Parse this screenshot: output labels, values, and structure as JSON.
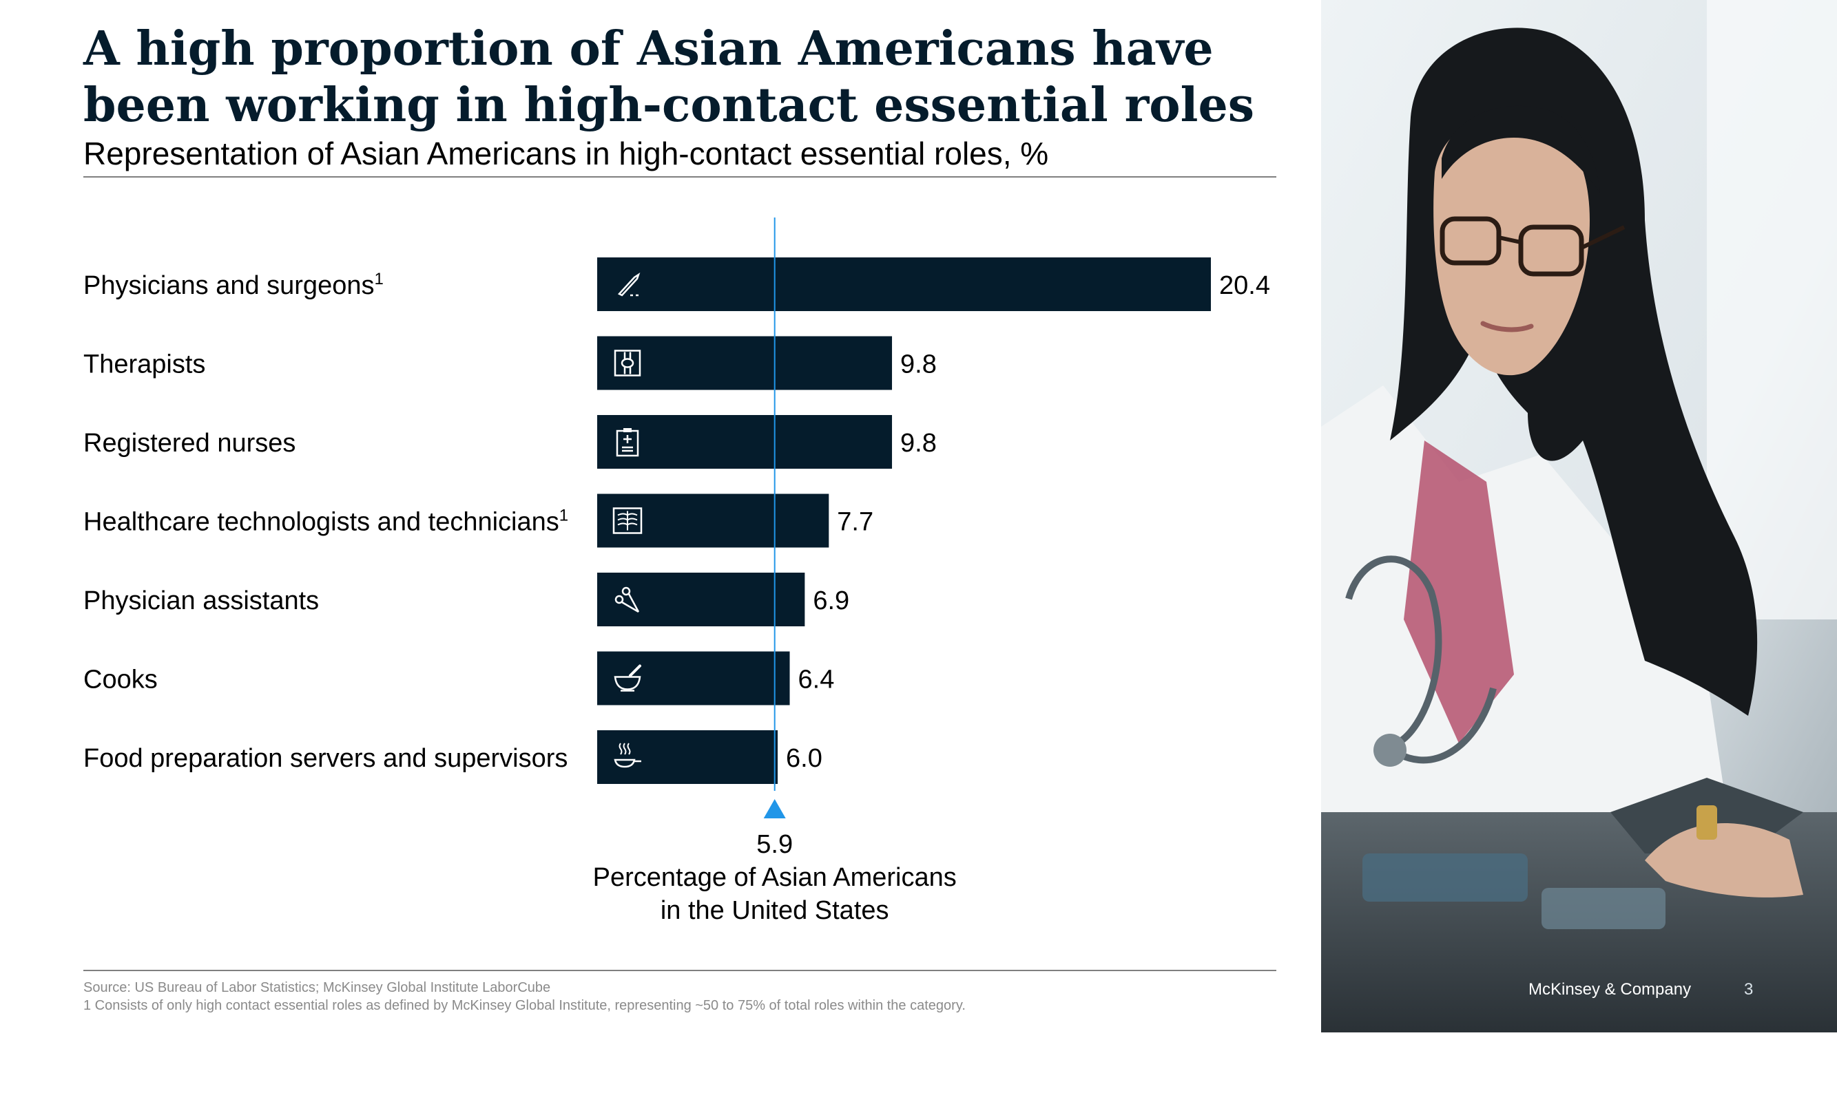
{
  "title": "A high proportion of Asian Americans have been working in high-contact essential roles",
  "subtitle": "Representation of Asian Americans in high-contact essential roles, %",
  "footer": {
    "source": "Source: US Bureau of Labor Statistics; McKinsey Global Institute LaborCube",
    "note": "1 Consists of only high contact essential roles as defined by McKinsey Global Institute, representing ~50 to 75% of total roles within the category.",
    "brand": "McKinsey & Company",
    "page": "3"
  },
  "colors": {
    "bar": "#051c2c",
    "reference": "#2196e8",
    "text": "#000000",
    "icon": "#ffffff"
  },
  "chart_data": {
    "type": "bar",
    "orientation": "horizontal",
    "categories": [
      "Physicians and surgeons",
      "Therapists",
      "Registered nurses",
      "Healthcare technologists and technicians",
      "Physician assistants",
      "Cooks",
      "Food preparation servers and supervisors"
    ],
    "footnote_marks": [
      "1",
      "",
      "",
      "1",
      "",
      "",
      ""
    ],
    "values": [
      20.4,
      9.8,
      9.8,
      7.7,
      6.9,
      6.4,
      6.0
    ],
    "value_labels": [
      "20.4",
      "9.8",
      "9.8",
      "7.7",
      "6.9",
      "6.4",
      "6.0"
    ],
    "icons": [
      "scalpel-icon",
      "joint-bone-icon",
      "medical-clipboard-icon",
      "xray-ribcage-icon",
      "surgical-clamp-icon",
      "mortar-pestle-icon",
      "steaming-pan-icon"
    ],
    "xlim": [
      0,
      20.4
    ],
    "reference_line": {
      "value": 5.9,
      "label_value": "5.9",
      "label_lines": [
        "Percentage of Asian Americans",
        "in the United States"
      ]
    },
    "legend": "none",
    "grid": false
  }
}
